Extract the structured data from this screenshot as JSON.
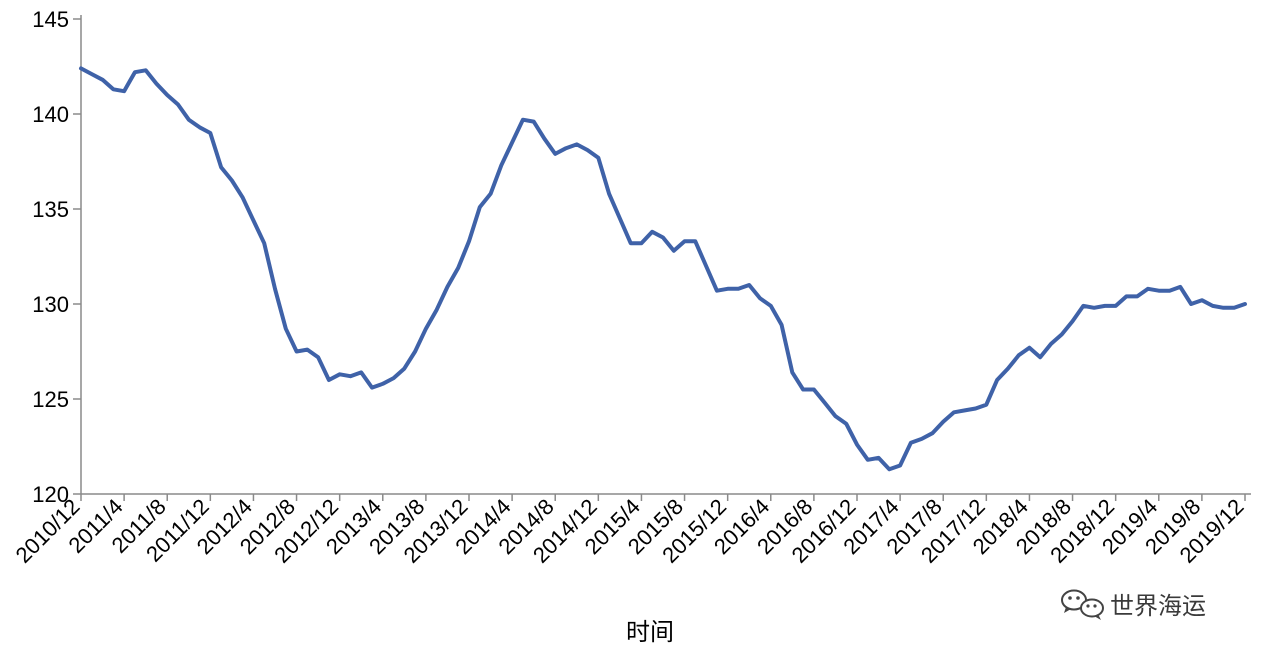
{
  "chart_data": {
    "type": "line",
    "title": "",
    "xlabel": "时间",
    "ylabel": "",
    "ylim": [
      120,
      145
    ],
    "yticks": [
      120,
      125,
      130,
      135,
      140,
      145
    ],
    "x_tick_labels": [
      "2010/12",
      "2011/4",
      "2011/8",
      "2011/12",
      "2012/4",
      "2012/8",
      "2012/12",
      "2013/4",
      "2013/8",
      "2013/12",
      "2014/4",
      "2014/8",
      "2014/12",
      "2015/4",
      "2015/8",
      "2015/12",
      "2016/4",
      "2016/8",
      "2016/12",
      "2017/4",
      "2017/8",
      "2017/12",
      "2018/4",
      "2018/8",
      "2018/12",
      "2019/4",
      "2019/8",
      "2019/12"
    ],
    "x_start": "2010/12",
    "x_end": "2019/12",
    "series": [
      {
        "color": "#3f62a8",
        "values": [
          142.4,
          142.1,
          141.8,
          141.3,
          141.2,
          142.2,
          142.3,
          141.6,
          141.0,
          140.5,
          139.7,
          139.3,
          139.0,
          137.2,
          136.5,
          135.6,
          134.4,
          133.2,
          130.8,
          128.7,
          127.5,
          127.6,
          127.2,
          126.0,
          126.3,
          126.2,
          126.4,
          125.6,
          125.8,
          126.1,
          126.6,
          127.5,
          128.7,
          129.7,
          130.9,
          131.9,
          133.3,
          135.1,
          135.8,
          137.3,
          138.5,
          139.7,
          139.6,
          138.7,
          137.9,
          138.2,
          138.4,
          138.1,
          137.7,
          135.8,
          134.5,
          133.2,
          133.2,
          133.8,
          133.5,
          132.8,
          133.3,
          133.3,
          132.0,
          130.7,
          130.8,
          130.8,
          131.0,
          130.3,
          129.9,
          128.9,
          126.4,
          125.5,
          125.5,
          124.8,
          124.1,
          123.7,
          122.6,
          121.8,
          121.9,
          121.3,
          121.5,
          122.7,
          122.9,
          123.2,
          123.8,
          124.3,
          124.4,
          124.5,
          124.7,
          126.0,
          126.6,
          127.3,
          127.7,
          127.2,
          127.9,
          128.4,
          129.1,
          129.9,
          129.8,
          129.9,
          129.9,
          130.4,
          130.4,
          130.8,
          130.7,
          130.7,
          130.9,
          130.0,
          130.2,
          129.9,
          129.8,
          129.8,
          130.0
        ]
      }
    ],
    "grid": false,
    "legend": "none"
  },
  "watermark": {
    "text": "世界海运",
    "icon": "wechat-icon"
  }
}
